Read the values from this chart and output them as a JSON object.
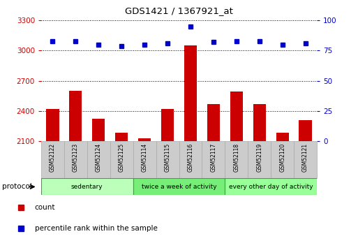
{
  "title": "GDS1421 / 1367921_at",
  "samples": [
    "GSM52122",
    "GSM52123",
    "GSM52124",
    "GSM52125",
    "GSM52114",
    "GSM52115",
    "GSM52116",
    "GSM52117",
    "GSM52118",
    "GSM52119",
    "GSM52120",
    "GSM52121"
  ],
  "counts": [
    2420,
    2600,
    2320,
    2180,
    2130,
    2420,
    3050,
    2470,
    2590,
    2470,
    2180,
    2310
  ],
  "percentiles": [
    83,
    83,
    80,
    79,
    80,
    81,
    95,
    82,
    83,
    83,
    80,
    81
  ],
  "ylim_left": [
    2100,
    3300
  ],
  "ylim_right": [
    0,
    100
  ],
  "yticks_left": [
    2100,
    2400,
    2700,
    3000,
    3300
  ],
  "yticks_right": [
    0,
    25,
    50,
    75,
    100
  ],
  "bar_color": "#cc0000",
  "dot_color": "#0000cc",
  "groups": [
    {
      "label": "sedentary",
      "start": 0,
      "end": 4
    },
    {
      "label": "twice a week of activity",
      "start": 4,
      "end": 8
    },
    {
      "label": "every other day of activity",
      "start": 8,
      "end": 12
    }
  ],
  "group_colors": [
    "#bbffbb",
    "#77ee77",
    "#99ff99"
  ],
  "group_border_color": "#33aa33",
  "legend_count_color": "#cc0000",
  "legend_pct_color": "#0000cc",
  "left_tick_color": "#cc0000",
  "right_tick_color": "#0000cc",
  "bar_width": 0.55,
  "grid_color": "black",
  "sample_box_color": "#cccccc",
  "sample_box_edge": "#aaaaaa",
  "protocol_label": "protocol",
  "dot_size": 5
}
